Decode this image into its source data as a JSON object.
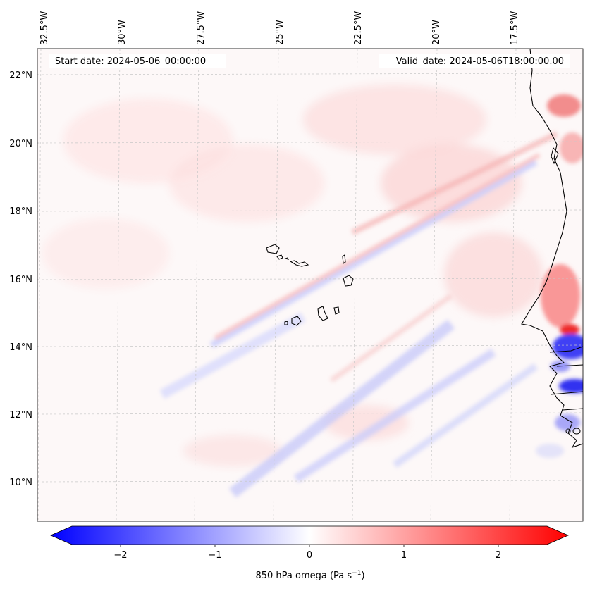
{
  "map": {
    "start_date": "Start date: 2024-05-06_00:00:00",
    "valid_date": "Valid_date: 2024-05-06T18:00:00.00",
    "lon_labels": [
      "32.5°W",
      "30°W",
      "27.5°W",
      "25°W",
      "22.5°W",
      "20°W",
      "17.5°W"
    ],
    "lat_labels": [
      "22°N",
      "20°N",
      "18°N",
      "16°N",
      "14°N",
      "12°N",
      "10°N"
    ],
    "extent": {
      "lon": [
        -32.6,
        -15.4
      ],
      "lat": [
        8.9,
        22.7
      ]
    },
    "islands": [
      "Santo Antão",
      "São Vicente",
      "Santa Luzia",
      "São Nicolau",
      "Sal",
      "Boa Vista",
      "Maio",
      "Santiago",
      "Fogo",
      "Brava"
    ],
    "coast": "West Africa (Mauritania, Senegal, Gambia, Guinea-Bissau)"
  },
  "colorbar": {
    "label": "850 hPa omega (Pa s",
    "label_sup": "−1",
    "label_end": ")",
    "ticks": [
      "−2",
      "−1",
      "0",
      "1",
      "2"
    ],
    "range": [
      -2.5,
      2.5
    ],
    "colormap": "bwr",
    "colors": {
      "low": "#0000ff",
      "mid": "#ffffff",
      "high": "#ff0000"
    }
  }
}
